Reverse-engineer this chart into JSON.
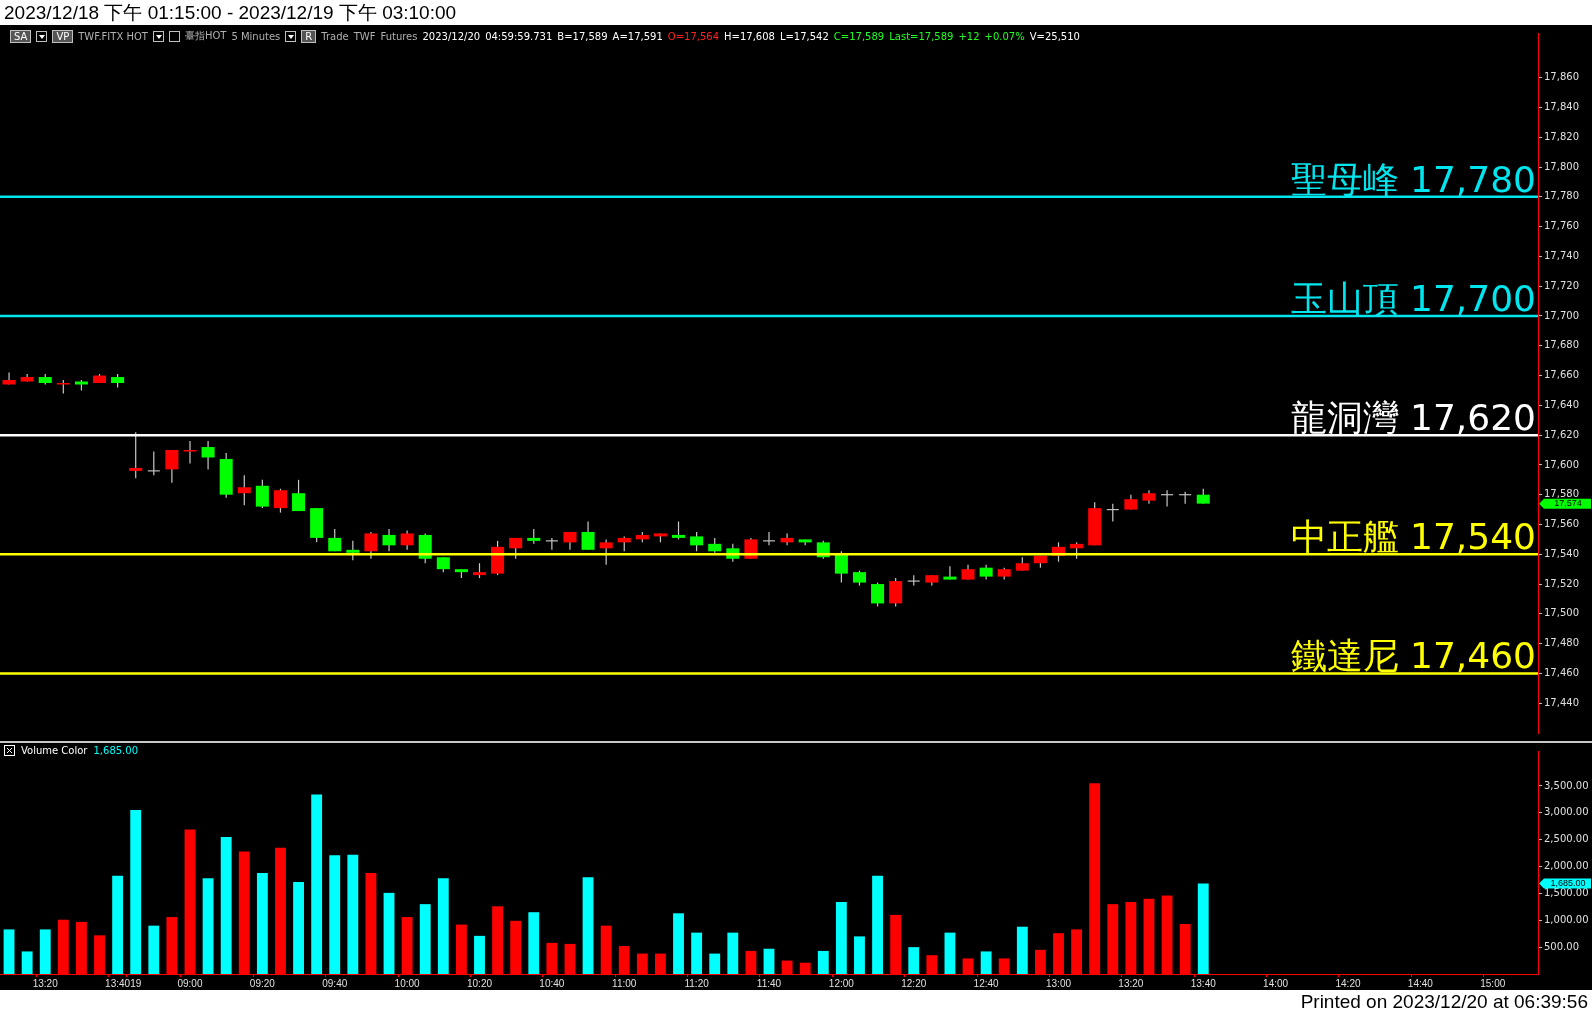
{
  "chart_data": [
    {
      "type": "candlestick",
      "title": "2023/12/18 下午 01:15:00 - 2023/12/19 下午 03:10:00",
      "categories": [
        null,
        null,
        null,
        null,
        null,
        null,
        null,
        null,
        null,
        null,
        null,
        null,
        null,
        null,
        null,
        null,
        null,
        null,
        null,
        null,
        null,
        null,
        null,
        null,
        null,
        null,
        null,
        null,
        null,
        null,
        null,
        null,
        null,
        null,
        null,
        null,
        null,
        null,
        null,
        null,
        null,
        null,
        null,
        null,
        null,
        null,
        null,
        null,
        null,
        null,
        null,
        null,
        null,
        null,
        null,
        null,
        null,
        null,
        null,
        null,
        null,
        null,
        null,
        null,
        null,
        null,
        null,
        null,
        null,
        null,
        null,
        null,
        null,
        null,
        null,
        null,
        null,
        null,
        null,
        null,
        null,
        null,
        null,
        null,
        null
      ],
      "ohlc": [
        [
          17654,
          17662,
          17654,
          17657
        ],
        [
          17656,
          17661,
          17656,
          17659
        ],
        [
          17659,
          17661,
          17654,
          17655
        ],
        [
          17654,
          17657,
          17648,
          17655
        ],
        [
          17656,
          17657,
          17650,
          17654
        ],
        [
          17655,
          17661,
          17655,
          17660
        ],
        [
          17659,
          17661,
          17652,
          17655
        ],
        [
          17596,
          17622,
          17591,
          17598
        ],
        [
          17596,
          17609,
          17593,
          17596
        ],
        [
          17597,
          17610,
          17588,
          17610
        ],
        [
          17609,
          17616,
          17601,
          17610
        ],
        [
          17612,
          17616,
          17597,
          17605
        ],
        [
          17604,
          17608,
          17578,
          17580
        ],
        [
          17581,
          17593,
          17573,
          17585
        ],
        [
          17586,
          17590,
          17571,
          17572
        ],
        [
          17571,
          17584,
          17568,
          17583
        ],
        [
          17581,
          17590,
          17569,
          17569
        ],
        [
          17571,
          17571,
          17548,
          17551
        ],
        [
          17551,
          17557,
          17542,
          17542
        ],
        [
          17543,
          17549,
          17536,
          17541
        ],
        [
          17542,
          17555,
          17537,
          17554
        ],
        [
          17553,
          17557,
          17542,
          17546
        ],
        [
          17546,
          17556,
          17543,
          17554
        ],
        [
          17553,
          17554,
          17534,
          17537
        ],
        [
          17538,
          17538,
          17528,
          17530
        ],
        [
          17530,
          17530,
          17524,
          17528
        ],
        [
          17526,
          17534,
          17524,
          17528
        ],
        [
          17527,
          17549,
          17526,
          17545
        ],
        [
          17544,
          17551,
          17537,
          17551
        ],
        [
          17551,
          17557,
          17547,
          17549
        ],
        [
          17549,
          17551,
          17543,
          17549
        ],
        [
          17548,
          17555,
          17543,
          17555
        ],
        [
          17555,
          17562,
          17543,
          17543
        ],
        [
          17544,
          17550,
          17533,
          17548
        ],
        [
          17548,
          17552,
          17542,
          17551
        ],
        [
          17550,
          17555,
          17548,
          17553
        ],
        [
          17552,
          17554,
          17548,
          17554
        ],
        [
          17553,
          17562,
          17550,
          17551
        ],
        [
          17552,
          17555,
          17542,
          17546
        ],
        [
          17547,
          17551,
          17541,
          17542
        ],
        [
          17544,
          17547,
          17535,
          17537
        ],
        [
          17537,
          17551,
          17537,
          17550
        ],
        [
          17549,
          17555,
          17546,
          17549
        ],
        [
          17548,
          17554,
          17546,
          17551
        ],
        [
          17550,
          17550,
          17546,
          17548
        ],
        [
          17548,
          17549,
          17537,
          17538
        ],
        [
          17540,
          17542,
          17521,
          17527
        ],
        [
          17528,
          17529,
          17519,
          17521
        ],
        [
          17520,
          17521,
          17505,
          17507
        ],
        [
          17507,
          17524,
          17505,
          17522
        ],
        [
          17522,
          17526,
          17519,
          17522
        ],
        [
          17521,
          17526,
          17519,
          17526
        ],
        [
          17525,
          17532,
          17523,
          17523
        ],
        [
          17523,
          17533,
          17523,
          17530
        ],
        [
          17531,
          17533,
          17523,
          17525
        ],
        [
          17525,
          17531,
          17523,
          17530
        ],
        [
          17529,
          17538,
          17529,
          17534
        ],
        [
          17534,
          17539,
          17531,
          17539
        ],
        [
          17539,
          17548,
          17535,
          17545
        ],
        [
          17544,
          17548,
          17537,
          17547
        ],
        [
          17546,
          17575,
          17546,
          17571
        ],
        [
          17570,
          17574,
          17562,
          17570
        ],
        [
          17570,
          17580,
          17570,
          17577
        ],
        [
          17576,
          17583,
          17574,
          17581
        ],
        [
          17580,
          17583,
          17572,
          17580
        ],
        [
          17580,
          17582,
          17574,
          17580
        ],
        [
          17580,
          17584,
          17574,
          17574
        ],
        null,
        null,
        null,
        null,
        null,
        null,
        null,
        null,
        null,
        null,
        null,
        null,
        null,
        null,
        null,
        null,
        null,
        null
      ],
      "colors": [
        "#ff0000",
        "#ff0000",
        "#00ff00",
        "#ff0000",
        "#00ff00",
        "#ff0000",
        "#00ff00",
        "#ff0000",
        "#c0c0c0",
        "#ff0000",
        "#ff0000",
        "#00ff00",
        "#00ff00",
        "#ff0000",
        "#00ff00",
        "#ff0000",
        "#00ff00",
        "#00ff00",
        "#00ff00",
        "#00ff00",
        "#ff0000",
        "#00ff00",
        "#ff0000",
        "#00ff00",
        "#00ff00",
        "#00ff00",
        "#ff0000",
        "#ff0000",
        "#ff0000",
        "#00ff00",
        "#c0c0c0",
        "#ff0000",
        "#00ff00",
        "#ff0000",
        "#ff0000",
        "#ff0000",
        "#ff0000",
        "#00ff00",
        "#00ff00",
        "#00ff00",
        "#00ff00",
        "#ff0000",
        "#c0c0c0",
        "#ff0000",
        "#00ff00",
        "#00ff00",
        "#00ff00",
        "#00ff00",
        "#00ff00",
        "#ff0000",
        "#c0c0c0",
        "#ff0000",
        "#00ff00",
        "#ff0000",
        "#00ff00",
        "#ff0000",
        "#ff0000",
        "#ff0000",
        "#ff0000",
        "#ff0000",
        "#ff0000",
        "#c0c0c0",
        "#ff0000",
        "#ff0000",
        "#c0c0c0",
        "#c0c0c0",
        "#00ff00",
        null,
        null,
        null,
        null,
        null,
        null,
        null,
        null,
        null,
        null,
        null,
        null,
        null,
        null,
        null,
        null,
        null,
        null
      ],
      "ylim": [
        17420,
        17890
      ],
      "yticks": [
        {
          "value": 17440,
          "label": "17,440"
        },
        {
          "value": 17460,
          "label": "17,460"
        },
        {
          "value": 17480,
          "label": "17,480"
        },
        {
          "value": 17500,
          "label": "17,500"
        },
        {
          "value": 17520,
          "label": "17,520"
        },
        {
          "value": 17540,
          "label": "17,540"
        },
        {
          "value": 17560,
          "label": "17,560"
        },
        {
          "value": 17580,
          "label": "17,580"
        },
        {
          "value": 17600,
          "label": "17,600"
        },
        {
          "value": 17620,
          "label": "17,620"
        },
        {
          "value": 17640,
          "label": "17,640"
        },
        {
          "value": 17660,
          "label": "17,660"
        },
        {
          "value": 17680,
          "label": "17,680"
        },
        {
          "value": 17700,
          "label": "17,700"
        },
        {
          "value": 17720,
          "label": "17,720"
        },
        {
          "value": 17740,
          "label": "17,740"
        },
        {
          "value": 17760,
          "label": "17,760"
        },
        {
          "value": 17780,
          "label": "17,780"
        },
        {
          "value": 17800,
          "label": "17,800"
        },
        {
          "value": 17820,
          "label": "17,820"
        },
        {
          "value": 17840,
          "label": "17,840"
        },
        {
          "value": 17860,
          "label": "17,860"
        }
      ],
      "tick_labels": "y",
      "ref_lines": [
        {
          "axis": "y",
          "value": 17780,
          "label": "聖母峰 17,780",
          "color": "#00e5ee"
        },
        {
          "axis": "y",
          "value": 17700,
          "label": "玉山頂 17,700",
          "color": "#00e5ee"
        },
        {
          "axis": "y",
          "value": 17620,
          "label": "龍洞灣 17,620",
          "color": "#ffffff"
        },
        {
          "axis": "y",
          "value": 17540,
          "label": "中正艦 17,540",
          "color": "#ffff00"
        },
        {
          "axis": "y",
          "value": 17460,
          "label": "鐵達尼 17,460",
          "color": "#ffff00"
        }
      ],
      "annotations": [
        "SA",
        "VP",
        "TWF.FITX HOT",
        "臺指HOT",
        "5 Minutes",
        "R",
        "Trade",
        "TWF",
        "Futures",
        "2023/12/20",
        "04:59:59.731",
        "B=17,589",
        "A=17,591",
        "O=17,564",
        "H=17,608",
        "L=17,542",
        "C=17,589",
        "Last=17,589",
        "+12",
        "+0.07%",
        "V=25,510",
        "17,574"
      ]
    },
    {
      "type": "bar",
      "title": "Volume Color",
      "categories": [
        null,
        null,
        "13:20",
        null,
        null,
        null,
        "13:40",
        "19",
        null,
        null,
        "09:00",
        null,
        null,
        null,
        "09:20",
        null,
        null,
        null,
        "09:40",
        null,
        null,
        null,
        "10:00",
        null,
        null,
        null,
        "10:20",
        null,
        null,
        null,
        "10:40",
        null,
        null,
        null,
        "11:00",
        null,
        null,
        null,
        "11:20",
        null,
        null,
        null,
        "11:40",
        null,
        null,
        null,
        "12:00",
        null,
        null,
        null,
        "12:20",
        null,
        null,
        null,
        "12:40",
        null,
        null,
        null,
        "13:00",
        null,
        null,
        null,
        "13:20",
        null,
        null,
        null,
        "13:40",
        null,
        null,
        null,
        "14:00",
        null,
        null,
        null,
        "14:20",
        null,
        null,
        null,
        "14:40",
        null,
        null,
        null,
        "15:00",
        null,
        null
      ],
      "values": [
        830,
        420,
        830,
        1010,
        970,
        720,
        1830,
        3050,
        900,
        1060,
        2690,
        1780,
        2550,
        2280,
        1880,
        2350,
        1710,
        3340,
        2210,
        2220,
        1880,
        1510,
        1060,
        1300,
        1780,
        920,
        710,
        1260,
        990,
        1150,
        580,
        560,
        1800,
        900,
        520,
        380,
        380,
        1130,
        770,
        380,
        770,
        430,
        470,
        250,
        210,
        430,
        1340,
        700,
        1830,
        1100,
        500,
        350,
        770,
        290,
        420,
        290,
        880,
        450,
        760,
        830,
        3550,
        1300,
        1340,
        1400,
        1460,
        930,
        1685,
        null,
        null,
        null,
        null,
        null,
        null,
        null,
        null,
        null,
        null,
        null,
        null,
        null,
        null,
        null,
        null,
        null,
        null
      ],
      "colors": [
        "#00ffff",
        "#00ffff",
        "#00ffff",
        "#ff0000",
        "#ff0000",
        "#ff0000",
        "#00ffff",
        "#00ffff",
        "#00ffff",
        "#ff0000",
        "#ff0000",
        "#00ffff",
        "#00ffff",
        "#ff0000",
        "#00ffff",
        "#ff0000",
        "#00ffff",
        "#00ffff",
        "#00ffff",
        "#00ffff",
        "#ff0000",
        "#00ffff",
        "#ff0000",
        "#00ffff",
        "#00ffff",
        "#ff0000",
        "#00ffff",
        "#ff0000",
        "#ff0000",
        "#00ffff",
        "#ff0000",
        "#ff0000",
        "#00ffff",
        "#ff0000",
        "#ff0000",
        "#ff0000",
        "#ff0000",
        "#00ffff",
        "#00ffff",
        "#00ffff",
        "#00ffff",
        "#ff0000",
        "#00ffff",
        "#ff0000",
        "#ff0000",
        "#00ffff",
        "#00ffff",
        "#00ffff",
        "#00ffff",
        "#ff0000",
        "#00ffff",
        "#ff0000",
        "#00ffff",
        "#ff0000",
        "#00ffff",
        "#ff0000",
        "#00ffff",
        "#ff0000",
        "#ff0000",
        "#ff0000",
        "#ff0000",
        "#ff0000",
        "#ff0000",
        "#ff0000",
        "#ff0000",
        "#ff0000",
        "#00ffff",
        null,
        null,
        null,
        null,
        null,
        null,
        null,
        null,
        null,
        null,
        null,
        null,
        null,
        null,
        null,
        null,
        null,
        null
      ],
      "ylim": [
        0,
        4150
      ],
      "yticks": [
        {
          "value": 500,
          "label": "500.00"
        },
        {
          "value": 1000,
          "label": "1,000.00"
        },
        {
          "value": 1500,
          "label": "1,500.00"
        },
        {
          "value": 2000,
          "label": "2,000.00"
        },
        {
          "value": 2500,
          "label": "2,500.00"
        },
        {
          "value": 3000,
          "label": "3,000.00"
        },
        {
          "value": 3500,
          "label": "3,500.00"
        }
      ],
      "annotations": [
        "1,685.00",
        "1,685.00",
        "Printed on 2023/12/20 at 06:39:56"
      ]
    }
  ]
}
